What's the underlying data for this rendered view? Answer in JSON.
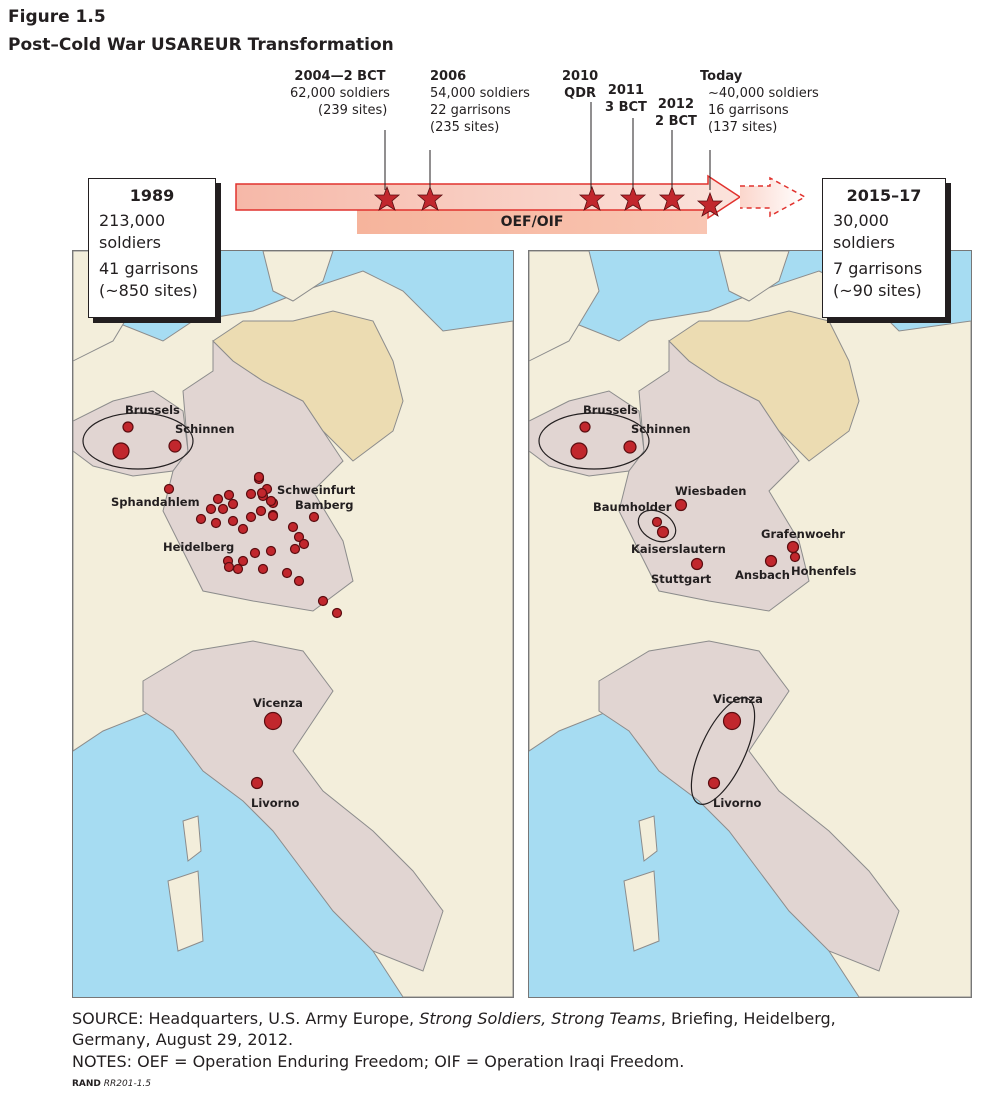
{
  "figure": {
    "number": "Figure 1.5",
    "title": "Post–Cold War USAREUR Transformation"
  },
  "timeline": {
    "events": [
      {
        "lines": [
          "2004—2 BCT",
          "62,000 soldiers",
          "(239 sites)"
        ]
      },
      {
        "lines": [
          "2006",
          "54,000 soldiers",
          "22 garrisons",
          "(235 sites)"
        ]
      },
      {
        "lines": [
          "2010",
          "QDR"
        ]
      },
      {
        "lines": [
          "2011",
          "3 BCT"
        ]
      },
      {
        "lines": [
          "2012",
          "2 BCT"
        ]
      },
      {
        "lines": [
          "Today",
          "~40,000 soldiers",
          "16 garrisons",
          "(137 sites)"
        ]
      }
    ],
    "band_label": "OEF/OIF"
  },
  "before": {
    "year": "1989",
    "soldiers": "213,000",
    "soldiers_unit": "soldiers",
    "garrisons": "41 garrisons",
    "sites": "(~850 sites)"
  },
  "after": {
    "year": "2015–17",
    "soldiers": "30,000",
    "soldiers_unit": "soldiers",
    "garrisons": "7 garrisons",
    "sites": "(~90 sites)"
  },
  "map_1989": {
    "labels": [
      "Brussels",
      "Schinnen",
      "Sphandahlem",
      "Schweinfurt",
      "Bamberg",
      "Heidelberg",
      "Vicenza",
      "Livorno"
    ]
  },
  "map_2015": {
    "labels": [
      "Brussels",
      "Schinnen",
      "Wiesbaden",
      "Baumholder",
      "Kaiserslautern",
      "Grafenwoehr",
      "Stuttgart",
      "Ansbach",
      "Hohenfels",
      "Vicenza",
      "Livorno"
    ]
  },
  "colors": {
    "sea": "#a6dcf2",
    "land": "#f3eedb",
    "us_country": "#e1d5d2",
    "east_germany": "#ecdcb2",
    "dot": "#c1272d",
    "arrow": "#f08a7a"
  },
  "footer": {
    "source_prefix": "SOURCE: Headquarters, U.S. Army Europe, ",
    "source_italic": "Strong Soldiers, Strong Teams",
    "source_suffix": ", Briefing, Heidelberg,",
    "source_line2": "Germany, August 29, 2012.",
    "notes": "NOTES: OEF = Operation Enduring Freedom; OIF = Operation Iraqi Freedom.",
    "credit_bold": "RAND",
    "credit_italic": " RR201-1.5"
  }
}
